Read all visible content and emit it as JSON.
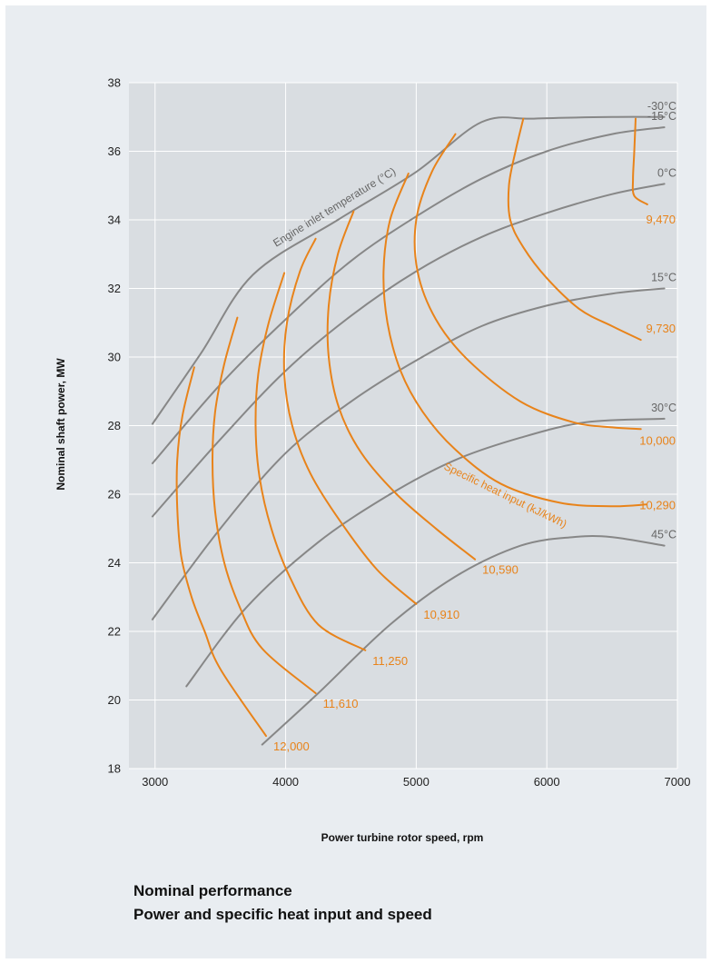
{
  "chart_data": {
    "type": "line",
    "xlabel": "Power turbine rotor speed, rpm",
    "ylabel": "Nominal shaft power, MW",
    "xlim": [
      2800,
      7000
    ],
    "ylim": [
      18,
      38
    ],
    "xticks": [
      3000,
      4000,
      5000,
      6000,
      7000
    ],
    "yticks": [
      18,
      20,
      22,
      24,
      26,
      28,
      30,
      32,
      34,
      36,
      38
    ],
    "grid": true,
    "annotations": {
      "temperature_curves": "Engine inlet temperature (°C)",
      "heat_input_curves": "Specific heat input (kJ/kWh)"
    },
    "temperature_series": [
      {
        "name": "-30°C",
        "color": "#878787",
        "points": [
          [
            2980,
            28.05
          ],
          [
            3350,
            30.1
          ],
          [
            3750,
            32.4
          ],
          [
            4400,
            34.0
          ],
          [
            5000,
            35.4
          ],
          [
            5500,
            36.85
          ],
          [
            5900,
            36.95
          ],
          [
            6500,
            37.0
          ],
          [
            6900,
            37.0
          ]
        ]
      },
      {
        "name": "-15°C",
        "color": "#878787",
        "points": [
          [
            2980,
            26.9
          ],
          [
            3500,
            29.2
          ],
          [
            4000,
            31.1
          ],
          [
            4500,
            32.8
          ],
          [
            5000,
            34.1
          ],
          [
            5500,
            35.2
          ],
          [
            6000,
            36.0
          ],
          [
            6500,
            36.5
          ],
          [
            6900,
            36.7
          ]
        ]
      },
      {
        "name": "0°C",
        "color": "#878787",
        "points": [
          [
            2980,
            25.35
          ],
          [
            3500,
            27.6
          ],
          [
            4000,
            29.6
          ],
          [
            4500,
            31.2
          ],
          [
            5000,
            32.5
          ],
          [
            5500,
            33.5
          ],
          [
            6000,
            34.2
          ],
          [
            6500,
            34.75
          ],
          [
            6900,
            35.05
          ]
        ]
      },
      {
        "name": "15°C",
        "color": "#878787",
        "points": [
          [
            2980,
            22.35
          ],
          [
            3500,
            25.0
          ],
          [
            4000,
            27.2
          ],
          [
            4500,
            28.7
          ],
          [
            5000,
            29.9
          ],
          [
            5500,
            30.9
          ],
          [
            6000,
            31.5
          ],
          [
            6500,
            31.85
          ],
          [
            6900,
            32.0
          ]
        ]
      },
      {
        "name": "30°C",
        "color": "#878787",
        "points": [
          [
            3240,
            20.4
          ],
          [
            3700,
            22.7
          ],
          [
            4250,
            24.6
          ],
          [
            4800,
            26.0
          ],
          [
            5300,
            27.0
          ],
          [
            5800,
            27.65
          ],
          [
            6300,
            28.1
          ],
          [
            6900,
            28.2
          ]
        ]
      },
      {
        "name": "45°C",
        "color": "#878787",
        "points": [
          [
            3820,
            18.7
          ],
          [
            4250,
            20.2
          ],
          [
            4800,
            22.2
          ],
          [
            5300,
            23.6
          ],
          [
            5800,
            24.5
          ],
          [
            6200,
            24.75
          ],
          [
            6500,
            24.75
          ],
          [
            6900,
            24.5
          ]
        ]
      }
    ],
    "heat_series": [
      {
        "name": "9,470",
        "color": "#e8831a",
        "points": [
          [
            6680,
            36.95
          ],
          [
            6670,
            36.0
          ],
          [
            6660,
            35.2
          ],
          [
            6670,
            34.7
          ],
          [
            6770,
            34.45
          ]
        ]
      },
      {
        "name": "9,730",
        "color": "#e8831a",
        "points": [
          [
            5820,
            36.95
          ],
          [
            5760,
            36.0
          ],
          [
            5710,
            35.0
          ],
          [
            5720,
            34.0
          ],
          [
            5820,
            33.2
          ],
          [
            6000,
            32.3
          ],
          [
            6250,
            31.4
          ],
          [
            6500,
            30.9
          ],
          [
            6720,
            30.5
          ]
        ]
      },
      {
        "name": "10,000",
        "color": "#e8831a",
        "points": [
          [
            5300,
            36.5
          ],
          [
            5120,
            35.4
          ],
          [
            5000,
            34.0
          ],
          [
            5010,
            32.5
          ],
          [
            5150,
            31.1
          ],
          [
            5400,
            29.9
          ],
          [
            5800,
            28.7
          ],
          [
            6200,
            28.1
          ],
          [
            6500,
            27.95
          ],
          [
            6720,
            27.9
          ]
        ]
      },
      {
        "name": "10,290",
        "color": "#e8831a",
        "points": [
          [
            4940,
            35.35
          ],
          [
            4800,
            34.0
          ],
          [
            4750,
            32.5
          ],
          [
            4780,
            31.0
          ],
          [
            4880,
            29.6
          ],
          [
            5050,
            28.4
          ],
          [
            5300,
            27.3
          ],
          [
            5650,
            26.3
          ],
          [
            6100,
            25.75
          ],
          [
            6500,
            25.65
          ],
          [
            6760,
            25.7
          ]
        ]
      },
      {
        "name": "10,590",
        "color": "#e8831a",
        "points": [
          [
            4520,
            34.25
          ],
          [
            4400,
            33.0
          ],
          [
            4330,
            31.5
          ],
          [
            4330,
            30.0
          ],
          [
            4410,
            28.5
          ],
          [
            4580,
            27.2
          ],
          [
            4850,
            26.0
          ],
          [
            5150,
            25.0
          ],
          [
            5450,
            24.1
          ]
        ]
      },
      {
        "name": "10,910",
        "color": "#e8831a",
        "points": [
          [
            4230,
            33.45
          ],
          [
            4110,
            32.5
          ],
          [
            4010,
            31.0
          ],
          [
            3990,
            29.5
          ],
          [
            4050,
            28.0
          ],
          [
            4190,
            26.6
          ],
          [
            4420,
            25.2
          ],
          [
            4700,
            23.8
          ],
          [
            5000,
            22.8
          ]
        ]
      },
      {
        "name": "11,250",
        "color": "#e8831a",
        "points": [
          [
            3990,
            32.45
          ],
          [
            3870,
            31.0
          ],
          [
            3790,
            29.5
          ],
          [
            3770,
            28.0
          ],
          [
            3800,
            26.5
          ],
          [
            3890,
            25.0
          ],
          [
            4030,
            23.6
          ],
          [
            4250,
            22.2
          ],
          [
            4610,
            21.45
          ]
        ]
      },
      {
        "name": "11,610",
        "color": "#e8831a",
        "points": [
          [
            3630,
            31.15
          ],
          [
            3530,
            29.8
          ],
          [
            3460,
            28.4
          ],
          [
            3440,
            27.0
          ],
          [
            3460,
            25.5
          ],
          [
            3530,
            24.0
          ],
          [
            3650,
            22.7
          ],
          [
            3820,
            21.5
          ],
          [
            4230,
            20.2
          ]
        ]
      },
      {
        "name": "12,000",
        "color": "#e8831a",
        "points": [
          [
            3300,
            29.7
          ],
          [
            3210,
            28.3
          ],
          [
            3170,
            27.0
          ],
          [
            3170,
            25.6
          ],
          [
            3200,
            24.2
          ],
          [
            3280,
            23.0
          ],
          [
            3380,
            22.0
          ],
          [
            3500,
            20.9
          ],
          [
            3850,
            18.95
          ]
        ]
      }
    ]
  },
  "captions": {
    "line1": "Nominal performance",
    "line2": "Power and specific heat input and speed"
  }
}
